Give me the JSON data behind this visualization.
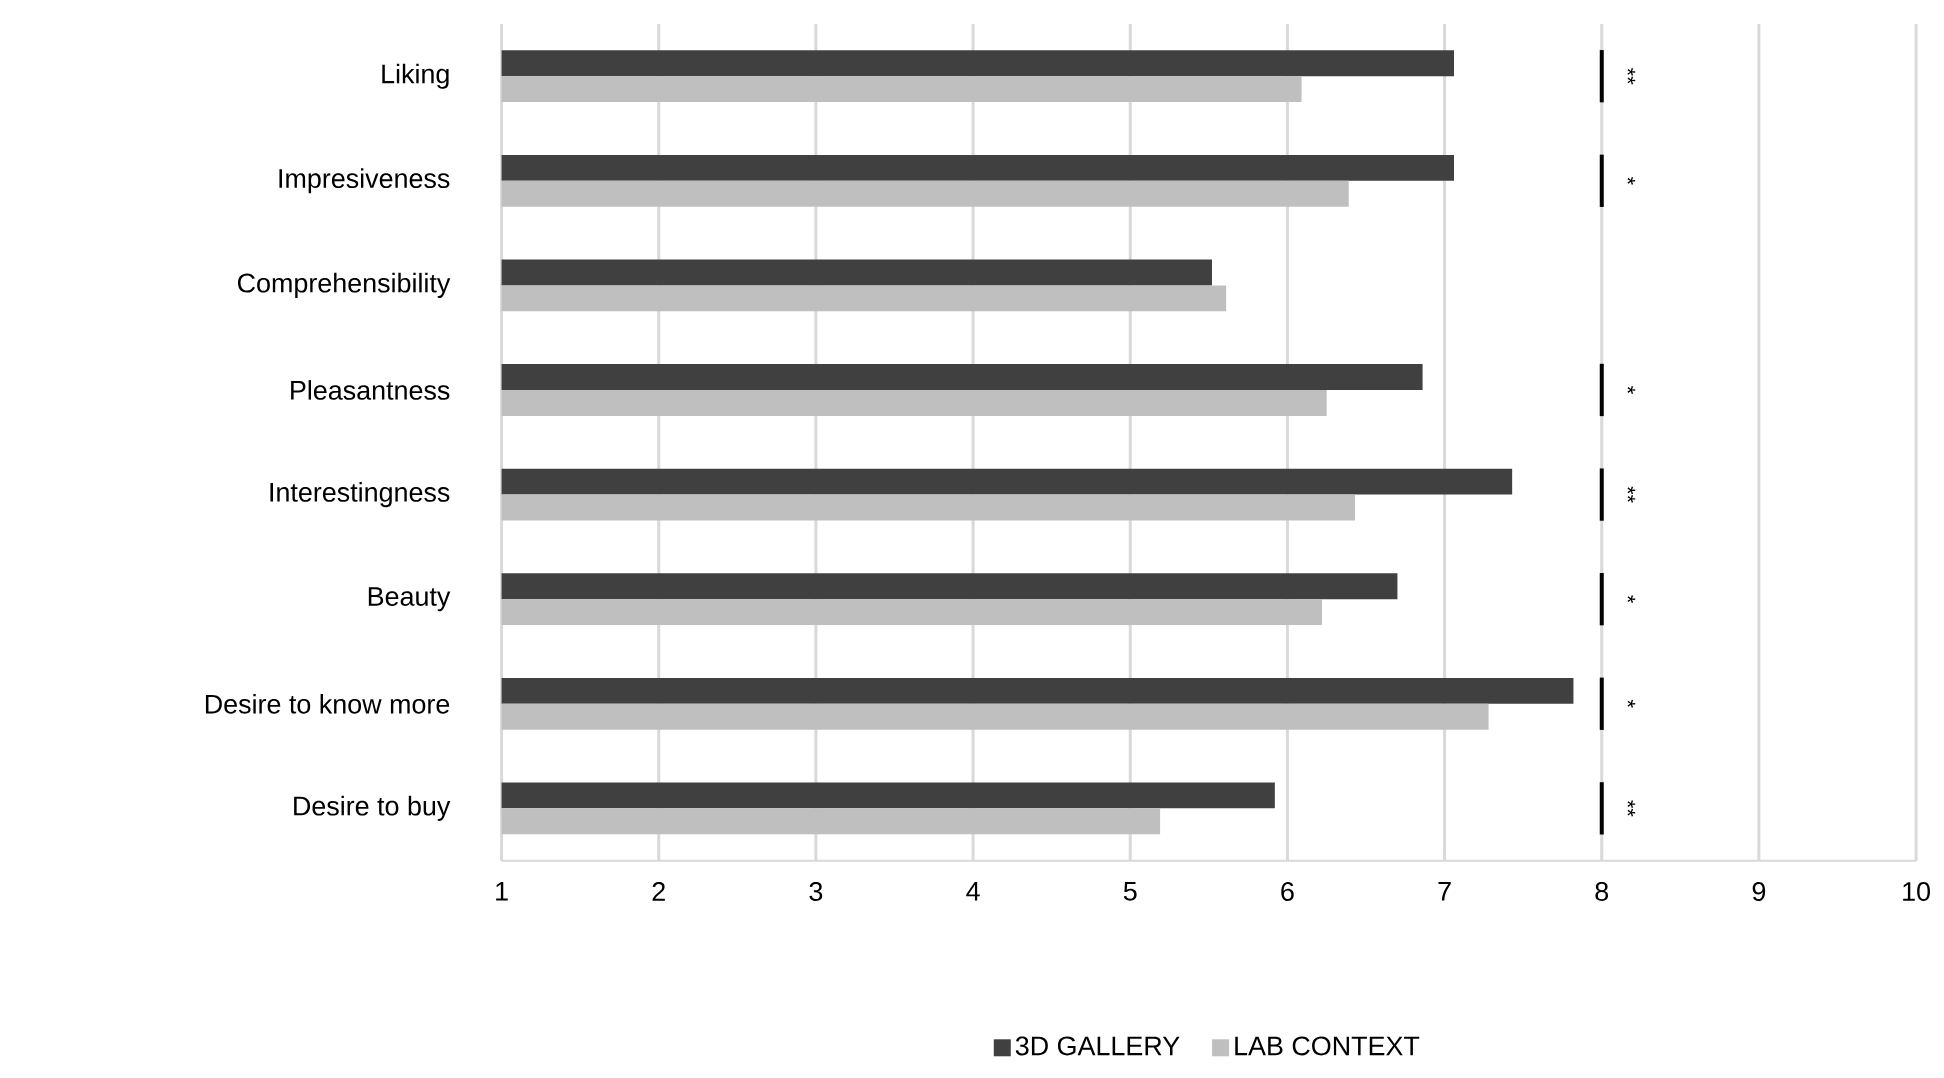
{
  "chart_data": {
    "type": "bar",
    "orientation": "horizontal",
    "categories": [
      "Liking",
      "Impresiveness",
      "Comprehensibility",
      "Pleasantness",
      "Interestingness",
      "Beauty",
      "Desire to know more",
      "Desire to buy"
    ],
    "series": [
      {
        "name": "3D GALLERY",
        "color": "#404040",
        "values": [
          7.06,
          7.06,
          5.52,
          6.86,
          7.43,
          6.7,
          7.82,
          5.92
        ]
      },
      {
        "name": "LAB CONTEXT",
        "color": "#bfbfbf",
        "values": [
          6.09,
          6.39,
          5.61,
          6.25,
          6.43,
          6.22,
          7.28,
          5.19
        ]
      }
    ],
    "xlim": [
      1,
      10
    ],
    "xticks": [
      1,
      2,
      3,
      4,
      5,
      6,
      7,
      8,
      9,
      10
    ],
    "grid": "x",
    "legend": "bottom",
    "annotations": [
      "**",
      "*",
      null,
      "*",
      "**",
      "*",
      "*",
      "**"
    ]
  }
}
